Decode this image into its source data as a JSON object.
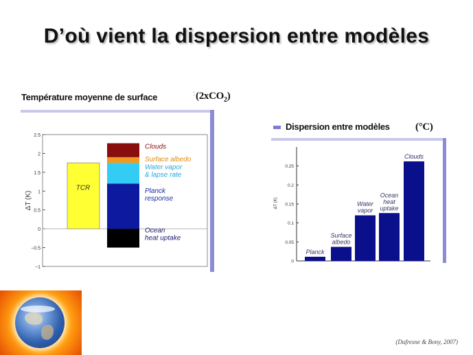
{
  "slide": {
    "title": "D’où vient la dispersion entre modèles",
    "left_label": "Température moyenne de surface",
    "left_unit_prefix": "(2xCO",
    "left_unit_sub": "2",
    "left_unit_suffix": ")",
    "right_label": "Dispersion entre modèles",
    "right_unit": "(°C)",
    "credit": "(Dufresne & Bony, 2007)",
    "image": "earth-sun-icon"
  },
  "chart_data": [
    {
      "type": "bar",
      "ylabel": "ΔT (K)",
      "ylim": [
        -1,
        2.5
      ],
      "yticks": [
        "2.5",
        "2",
        "1.5",
        "1",
        "0.5",
        "0",
        "−0.5",
        "−1"
      ],
      "tcr": {
        "label": "TCR",
        "value": 1.75,
        "color": "#ffff33"
      },
      "stack": [
        {
          "label": "Ocean\nheat uptake",
          "from": -0.5,
          "to": 0,
          "color": "#000000",
          "label_color": "#1a1a6e"
        },
        {
          "label": "Planck\nresponse",
          "from": 0,
          "to": 1.2,
          "color": "#0d1aa0",
          "label_color": "#1a2aa8"
        },
        {
          "label": "Water vapor\n& lapse rate",
          "from": 1.2,
          "to": 1.75,
          "color": "#33ccf5",
          "label_color": "#22a8e0"
        },
        {
          "label": "Surface albedo",
          "from": 1.75,
          "to": 1.9,
          "color": "#f09a1c",
          "label_color": "#e08a10"
        },
        {
          "label": "Clouds",
          "from": 1.9,
          "to": 2.27,
          "color": "#8a0d0d",
          "label_color": "#8a1010"
        }
      ],
      "colors": {
        "frame": "#888888",
        "accent": "#8c8cd6"
      }
    },
    {
      "type": "bar",
      "ylabel": "ΔT (K)",
      "ylim": [
        0,
        0.3
      ],
      "yticks": [
        "0.25",
        "0.2",
        "0.15",
        "0.1",
        "0.05",
        "0"
      ],
      "categories": [
        "Planck",
        "Surface\nalbedo",
        "Water\nvapor",
        "Ocean\nheat\nuptake",
        "Clouds"
      ],
      "values": [
        0.011,
        0.037,
        0.12,
        0.126,
        0.262
      ],
      "bar_color": "#0a0f8c",
      "label_color": "#333366"
    }
  ]
}
